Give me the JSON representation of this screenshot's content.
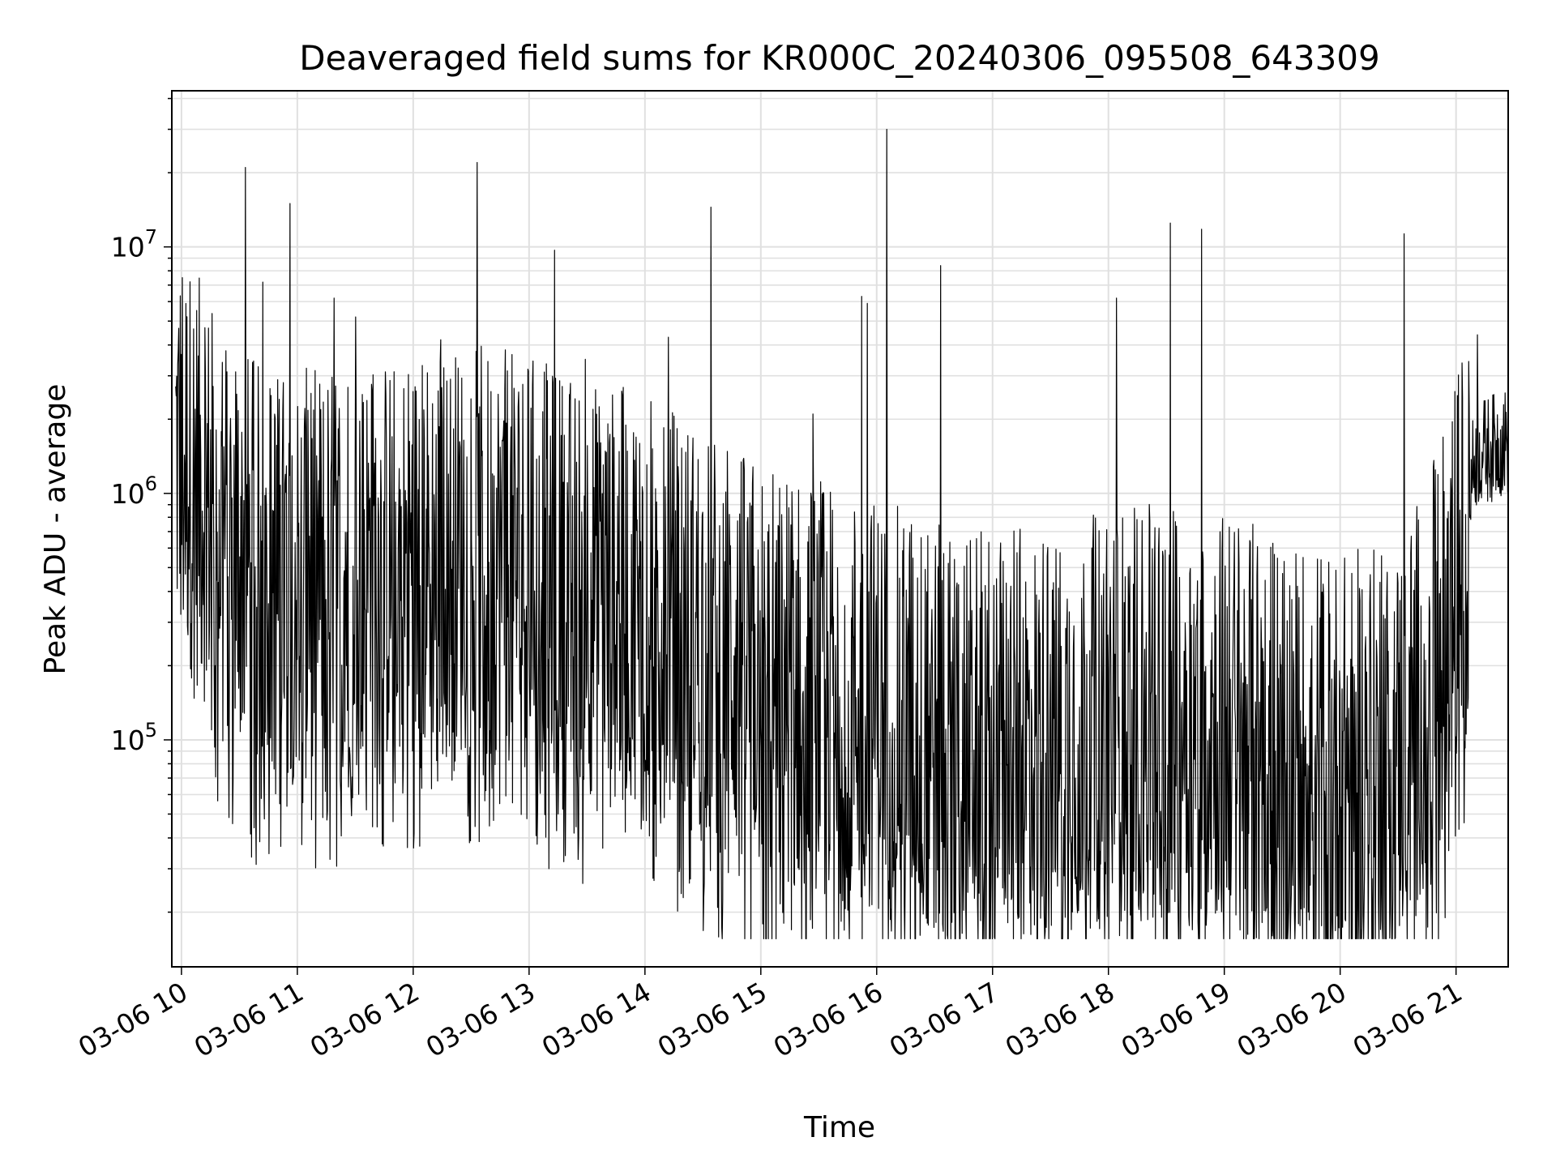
{
  "chart_data": {
    "type": "line",
    "title": "Deaveraged field sums for KR000C_20240306_095508_643309",
    "xlabel": "Time",
    "ylabel": "Peak ADU - average",
    "x_scale": "time",
    "y_scale": "log",
    "xlim": [
      "2024-03-06 09:55",
      "2024-03-06 21:27"
    ],
    "ylim": [
      12000,
      43000000
    ],
    "x_ticks": [
      "03-06 10",
      "03-06 11",
      "03-06 12",
      "03-06 13",
      "03-06 14",
      "03-06 15",
      "03-06 16",
      "03-06 17",
      "03-06 18",
      "03-06 19",
      "03-06 20",
      "03-06 21"
    ],
    "y_ticks": [
      {
        "base": "10",
        "exp": "5"
      },
      {
        "base": "10",
        "exp": "6"
      },
      {
        "base": "10",
        "exp": "7"
      }
    ],
    "grid": true,
    "line_color": "#000000",
    "grid_color": "#e0e0e0",
    "series": [
      {
        "values": [
          {
            "x": "2024-03-06 10:00",
            "y": 1800000
          },
          {
            "x": "2024-03-06 10:20",
            "y": 900000
          },
          {
            "x": "2024-03-06 10:40",
            "y": 600000
          },
          {
            "x": "2024-03-06 11:00",
            "y": 550000
          },
          {
            "x": "2024-03-06 11:30",
            "y": 600000
          },
          {
            "x": "2024-03-06 12:00",
            "y": 650000
          },
          {
            "x": "2024-03-06 12:30",
            "y": 700000
          },
          {
            "x": "2024-03-06 13:00",
            "y": 650000
          },
          {
            "x": "2024-03-06 13:30",
            "y": 500000
          },
          {
            "x": "2024-03-06 14:00",
            "y": 450000
          },
          {
            "x": "2024-03-06 14:30",
            "y": 330000
          },
          {
            "x": "2024-03-06 15:00",
            "y": 230000
          },
          {
            "x": "2024-03-06 15:30",
            "y": 200000
          },
          {
            "x": "2024-03-06 16:00",
            "y": 170000
          },
          {
            "x": "2024-03-06 16:30",
            "y": 130000
          },
          {
            "x": "2024-03-06 17:00",
            "y": 120000
          },
          {
            "x": "2024-03-06 17:30",
            "y": 130000
          },
          {
            "x": "2024-03-06 18:00",
            "y": 150000
          },
          {
            "x": "2024-03-06 18:30",
            "y": 160000
          },
          {
            "x": "2024-03-06 19:00",
            "y": 150000
          },
          {
            "x": "2024-03-06 19:30",
            "y": 120000
          },
          {
            "x": "2024-03-06 20:00",
            "y": 100000
          },
          {
            "x": "2024-03-06 20:30",
            "y": 110000
          },
          {
            "x": "2024-03-06 20:50",
            "y": 250000
          },
          {
            "x": "2024-03-06 21:00",
            "y": 500000
          },
          {
            "x": "2024-03-06 21:10",
            "y": 1500000
          },
          {
            "x": "2024-03-06 21:25",
            "y": 1700000
          }
        ],
        "spikes": [
          {
            "x": "2024-03-06 10:12",
            "y": 4700000
          },
          {
            "x": "2024-03-06 10:21",
            "y": 3400000
          },
          {
            "x": "2024-03-06 10:33",
            "y": 21000000
          },
          {
            "x": "2024-03-06 10:42",
            "y": 7200000
          },
          {
            "x": "2024-03-06 10:56",
            "y": 15000000
          },
          {
            "x": "2024-03-06 11:19",
            "y": 6200000
          },
          {
            "x": "2024-03-06 11:30",
            "y": 5200000
          },
          {
            "x": "2024-03-06 12:14",
            "y": 4200000
          },
          {
            "x": "2024-03-06 12:33",
            "y": 22000000
          },
          {
            "x": "2024-03-06 13:13",
            "y": 9700000
          },
          {
            "x": "2024-03-06 13:29",
            "y": 3500000
          },
          {
            "x": "2024-03-06 14:12",
            "y": 4300000
          },
          {
            "x": "2024-03-06 14:34",
            "y": 14500000
          },
          {
            "x": "2024-03-06 15:27",
            "y": 2100000
          },
          {
            "x": "2024-03-06 15:52",
            "y": 6300000
          },
          {
            "x": "2024-03-06 15:55",
            "y": 5900000
          },
          {
            "x": "2024-03-06 16:05",
            "y": 30000000
          },
          {
            "x": "2024-03-06 16:33",
            "y": 8400000
          },
          {
            "x": "2024-03-06 18:04",
            "y": 6200000
          },
          {
            "x": "2024-03-06 18:32",
            "y": 12500000
          },
          {
            "x": "2024-03-06 18:48",
            "y": 11800000
          },
          {
            "x": "2024-03-06 20:33",
            "y": 11300000
          },
          {
            "x": "2024-03-06 21:11",
            "y": 4400000
          }
        ]
      }
    ]
  }
}
